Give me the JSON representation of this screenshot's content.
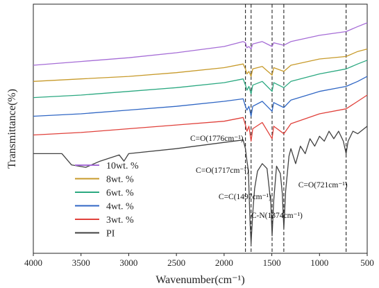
{
  "chart_data": {
    "type": "line",
    "xlabel": "Wavenumber(cm⁻¹)",
    "ylabel": "Transmittance(%)",
    "xlim": [
      4000,
      500
    ],
    "x_ticks": [
      4000,
      3500,
      3000,
      2500,
      2000,
      1500,
      1000,
      500
    ],
    "legend_position": "left-lower",
    "series": [
      {
        "name": "10wt. %",
        "color": "#a56cd6",
        "points": [
          [
            4000,
            91
          ],
          [
            3500,
            94
          ],
          [
            3000,
            97
          ],
          [
            2500,
            101
          ],
          [
            2000,
            106
          ],
          [
            1800,
            110
          ],
          [
            1776,
            109
          ],
          [
            1760,
            105
          ],
          [
            1740,
            106
          ],
          [
            1717,
            104
          ],
          [
            1700,
            108
          ],
          [
            1600,
            110
          ],
          [
            1497,
            106
          ],
          [
            1480,
            109
          ],
          [
            1374,
            107
          ],
          [
            1300,
            110
          ],
          [
            1000,
            115
          ],
          [
            721,
            118
          ],
          [
            600,
            122
          ],
          [
            500,
            125
          ]
        ]
      },
      {
        "name": "8wt. %",
        "color": "#c79a2a",
        "points": [
          [
            4000,
            78
          ],
          [
            3500,
            80
          ],
          [
            3000,
            82
          ],
          [
            2500,
            85
          ],
          [
            2000,
            89
          ],
          [
            1800,
            92
          ],
          [
            1776,
            88
          ],
          [
            1760,
            84
          ],
          [
            1740,
            86
          ],
          [
            1717,
            82
          ],
          [
            1700,
            88
          ],
          [
            1600,
            90
          ],
          [
            1497,
            83
          ],
          [
            1480,
            89
          ],
          [
            1374,
            86
          ],
          [
            1300,
            91
          ],
          [
            1000,
            96
          ],
          [
            721,
            98
          ],
          [
            600,
            102
          ],
          [
            500,
            104
          ]
        ]
      },
      {
        "name": "6wt. %",
        "color": "#2aa880",
        "points": [
          [
            4000,
            65
          ],
          [
            3500,
            67
          ],
          [
            3000,
            70
          ],
          [
            2500,
            73
          ],
          [
            2000,
            77
          ],
          [
            1800,
            80
          ],
          [
            1776,
            75
          ],
          [
            1760,
            71
          ],
          [
            1740,
            74
          ],
          [
            1717,
            68
          ],
          [
            1700,
            75
          ],
          [
            1600,
            78
          ],
          [
            1497,
            70
          ],
          [
            1480,
            77
          ],
          [
            1374,
            73
          ],
          [
            1300,
            78
          ],
          [
            1000,
            84
          ],
          [
            721,
            88
          ],
          [
            600,
            92
          ],
          [
            500,
            95
          ]
        ]
      },
      {
        "name": "4wt. %",
        "color": "#2f66c4",
        "points": [
          [
            4000,
            50
          ],
          [
            3500,
            52
          ],
          [
            3000,
            55
          ],
          [
            2500,
            58
          ],
          [
            2000,
            62
          ],
          [
            1800,
            64
          ],
          [
            1776,
            58
          ],
          [
            1760,
            55
          ],
          [
            1740,
            58
          ],
          [
            1717,
            50
          ],
          [
            1700,
            58
          ],
          [
            1600,
            62
          ],
          [
            1497,
            54
          ],
          [
            1480,
            61
          ],
          [
            1374,
            57
          ],
          [
            1300,
            63
          ],
          [
            1000,
            70
          ],
          [
            721,
            74
          ],
          [
            600,
            78
          ],
          [
            500,
            82
          ]
        ]
      },
      {
        "name": "3wt. %",
        "color": "#e0403a",
        "points": [
          [
            4000,
            35
          ],
          [
            3500,
            37
          ],
          [
            3000,
            40
          ],
          [
            2500,
            43
          ],
          [
            2000,
            46
          ],
          [
            1800,
            49
          ],
          [
            1776,
            43
          ],
          [
            1760,
            38
          ],
          [
            1740,
            42
          ],
          [
            1717,
            30
          ],
          [
            1700,
            40
          ],
          [
            1600,
            45
          ],
          [
            1497,
            32
          ],
          [
            1480,
            42
          ],
          [
            1374,
            36
          ],
          [
            1300,
            44
          ],
          [
            1000,
            52
          ],
          [
            721,
            56
          ],
          [
            600,
            62
          ],
          [
            500,
            67
          ]
        ]
      },
      {
        "name": "PI",
        "color": "#404040",
        "points": [
          [
            4000,
            20
          ],
          [
            3700,
            20
          ],
          [
            3600,
            11
          ],
          [
            3450,
            9
          ],
          [
            3300,
            14
          ],
          [
            3100,
            19
          ],
          [
            3050,
            14
          ],
          [
            3000,
            20
          ],
          [
            2500,
            24
          ],
          [
            2000,
            29
          ],
          [
            1800,
            31
          ],
          [
            1776,
            24
          ],
          [
            1760,
            14
          ],
          [
            1745,
            6
          ],
          [
            1730,
            -32
          ],
          [
            1717,
            -52
          ],
          [
            1700,
            -28
          ],
          [
            1680,
            -8
          ],
          [
            1650,
            6
          ],
          [
            1600,
            12
          ],
          [
            1550,
            8
          ],
          [
            1510,
            -20
          ],
          [
            1497,
            -46
          ],
          [
            1480,
            -18
          ],
          [
            1450,
            10
          ],
          [
            1410,
            4
          ],
          [
            1390,
            -12
          ],
          [
            1374,
            -40
          ],
          [
            1355,
            -10
          ],
          [
            1320,
            18
          ],
          [
            1300,
            24
          ],
          [
            1250,
            12
          ],
          [
            1200,
            26
          ],
          [
            1150,
            20
          ],
          [
            1100,
            32
          ],
          [
            1050,
            26
          ],
          [
            1000,
            34
          ],
          [
            950,
            30
          ],
          [
            900,
            38
          ],
          [
            850,
            32
          ],
          [
            800,
            38
          ],
          [
            750,
            30
          ],
          [
            721,
            20
          ],
          [
            700,
            30
          ],
          [
            650,
            38
          ],
          [
            600,
            36
          ],
          [
            500,
            42
          ]
        ]
      }
    ],
    "reference_lines": [
      1776,
      1717,
      1497,
      1374,
      721
    ],
    "annotations": [
      {
        "text": "C=O(1776cm⁻¹)",
        "x": 1776
      },
      {
        "text": "C=O(1717cm⁻¹)",
        "x": 1717
      },
      {
        "text": "C=C(1497cm⁻¹)",
        "x": 1497
      },
      {
        "text": "C-N(1374cm⁻¹)",
        "x": 1374
      },
      {
        "text": "C=O(721cm⁻¹)",
        "x": 721
      }
    ]
  }
}
